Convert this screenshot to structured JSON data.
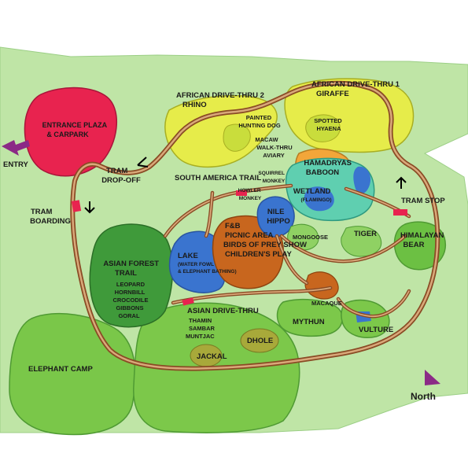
{
  "labels": {
    "entrance_plaza": [
      "ENTRANCE PLAZA",
      "& CARPARK"
    ],
    "entry": "ENTRY",
    "tram_dropoff": [
      "TRAM",
      "DROP-OFF"
    ],
    "tram_boarding": [
      "TRAM",
      "BOARDING"
    ],
    "african_drive_2": [
      "AFRICAN DRIVE-THRU 2",
      "RHINO"
    ],
    "african_drive_1": [
      "AFRICAN DRIVE-THRU 1",
      "GIRAFFE"
    ],
    "painted_hunting_dog": [
      "PAINTED",
      "HUNTING DOG"
    ],
    "spotted_hyaena": [
      "SPOTTED",
      "HYAENA"
    ],
    "macaw_aviary": [
      "MACAW",
      "WALK-THRU",
      "AVIARY"
    ],
    "south_america_trail": "SOUTH AMERICA TRAIL",
    "squirrel_monkey": [
      "SQUIRREL",
      "MONKEY"
    ],
    "howler_monkey": [
      "HOWLER",
      "MONKEY"
    ],
    "hamadryas_baboon": [
      "HAMADRYAS",
      "BABOON"
    ],
    "wetland": [
      "WETLAND",
      "(FLAMINGO)"
    ],
    "nile_hippo": [
      "NILE",
      "HIPPO"
    ],
    "tram_stop": "TRAM STOP",
    "mongoose": "MONGOOSE",
    "tiger": "TIGER",
    "himalayan_bear": [
      "HIMALAYAN",
      "BEAR"
    ],
    "fb_area": [
      "F&B",
      "PICNIC AREA",
      "BIRDS OF PREY SHOW",
      "CHILDREN'S PLAY"
    ],
    "lake": [
      "LAKE",
      "(WATER FOWL",
      "& ELEPHANT BATHING)"
    ],
    "asian_forest_trail": [
      "ASIAN FOREST",
      "TRAIL"
    ],
    "asian_forest_animals": [
      "LEOPARD",
      "HORNBILL",
      "CROCODILE",
      "GIBBONS",
      "GORAL"
    ],
    "macaque": "MACAQUE",
    "mythun": "MYTHUN",
    "vulture": "VULTURE",
    "asian_drive": "ASIAN DRIVE-THRU",
    "asian_drive_animals": [
      "THAMIN",
      "SAMBAR",
      "MUNTJAC"
    ],
    "dhole": "DHOLE",
    "jackal": "JACKAL",
    "elephant_camp": "ELEPHANT CAMP",
    "north": "North"
  },
  "colors": {
    "background": "#bfe5a6",
    "border_band": "#ffffff",
    "entrance": "#e8234f",
    "african": "#e6ec4a",
    "african_inner": "#c9dd3c",
    "asian_forest": "#3f9a3a",
    "lake": "#3a74cf",
    "fb": "#c8661e",
    "wetland": "#5fcfb0",
    "baboon": "#f2a63a",
    "hippo": "#3a74cf",
    "enclosure_green": "#6cc043",
    "enclosure_light": "#8fd163",
    "asian_drive": "#7cc84a",
    "elephant": "#7ac749",
    "jackal": "#a8a93a",
    "road": "#8a4b25",
    "entry_arrow": "#8b2a86",
    "north_arrow": "#8b2a86"
  },
  "icons": {
    "entry_arrow": "entry-arrow-icon",
    "north_arrow": "north-arrow-icon",
    "direction_arrows": "direction-arrow-icon"
  }
}
